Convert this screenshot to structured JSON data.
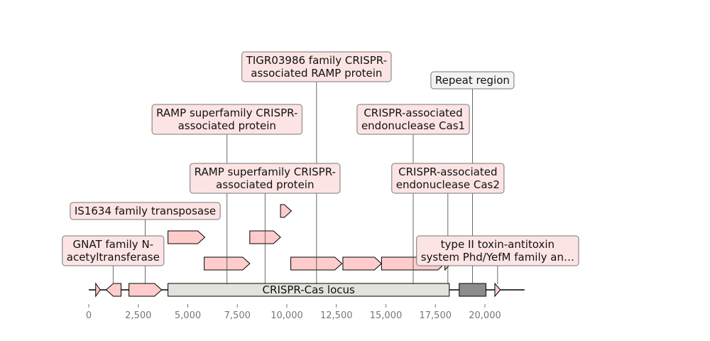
{
  "colors": {
    "gene_fill": "#ffcccc",
    "locus_fill": "#e3e3dd",
    "repeat_fill": "#8c8c8c",
    "label_fill": "#fde4e4",
    "repeat_label_fill": "#f2f2f2"
  },
  "axis": {
    "min": 0,
    "max": 22000,
    "ticks": [
      {
        "value": 0,
        "label": "0"
      },
      {
        "value": 2500,
        "label": "2,500"
      },
      {
        "value": 5000,
        "label": "5,000"
      },
      {
        "value": 7500,
        "label": "7,500"
      },
      {
        "value": 10000,
        "label": "10,000"
      },
      {
        "value": 12500,
        "label": "12,500"
      },
      {
        "value": 15000,
        "label": "15,000"
      },
      {
        "value": 17500,
        "label": "17,500"
      },
      {
        "value": 20000,
        "label": "20,000"
      }
    ]
  },
  "backbone": {
    "start": 0,
    "end": 22000
  },
  "locus": {
    "start": 4000,
    "end": 18200,
    "label": "CRISPR-Cas locus"
  },
  "repeat_region": {
    "start": 18700,
    "end": 20050
  },
  "features": [
    {
      "start": 350,
      "end": 580,
      "strand": 1,
      "track": 0
    },
    {
      "start": 880,
      "end": 1630,
      "strand": -1,
      "track": 0
    },
    {
      "start": 2030,
      "end": 3680,
      "strand": 1,
      "track": 0
    },
    {
      "start": 5830,
      "end": 8130,
      "strand": 1,
      "track": 1
    },
    {
      "start": 4000,
      "end": 5860,
      "strand": 1,
      "track": 2
    },
    {
      "start": 8130,
      "end": 9680,
      "strand": 1,
      "track": 2
    },
    {
      "start": 9680,
      "end": 10230,
      "strand": 1,
      "track": 3
    },
    {
      "start": 10200,
      "end": 12780,
      "strand": 1,
      "track": 1
    },
    {
      "start": 12830,
      "end": 14780,
      "strand": 1,
      "track": 1
    },
    {
      "start": 14780,
      "end": 17980,
      "strand": 1,
      "track": 1
    },
    {
      "start": 17980,
      "end": 18280,
      "strand": 1,
      "track": 1
    },
    {
      "start": 20500,
      "end": 20780,
      "strand": 1,
      "track": 0
    }
  ],
  "annotations": [
    {
      "text": [
        "GNAT family N-",
        "acetyltransferase"
      ],
      "anchor": 1230,
      "level": 1,
      "kind": "gene"
    },
    {
      "text": [
        "IS1634 family transposase"
      ],
      "anchor": 2850,
      "level": 2,
      "kind": "gene"
    },
    {
      "text": [
        "RAMP superfamily CRISPR-",
        "associated protein"
      ],
      "anchor": 6980,
      "level": 4,
      "kind": "gene"
    },
    {
      "text": [
        "RAMP superfamily CRISPR-",
        "associated protein"
      ],
      "anchor": 8900,
      "level": 3,
      "kind": "gene"
    },
    {
      "text": [
        "TIGR03986 family CRISPR-",
        "associated RAMP protein"
      ],
      "anchor": 11500,
      "level": 5,
      "kind": "gene"
    },
    {
      "text": [
        "CRISPR-associated",
        "endonuclease Cas1"
      ],
      "anchor": 16380,
      "level": 4,
      "kind": "gene"
    },
    {
      "text": [
        "CRISPR-associated",
        "endonuclease Cas2"
      ],
      "anchor": 18130,
      "level": 3,
      "kind": "gene"
    },
    {
      "text": [
        "Repeat region"
      ],
      "anchor": 19370,
      "level": 6,
      "kind": "repeat"
    },
    {
      "text": [
        "type II toxin-antitoxin",
        "system Phd/YefM family an…"
      ],
      "anchor": 20640,
      "level": 1,
      "kind": "gene"
    }
  ]
}
